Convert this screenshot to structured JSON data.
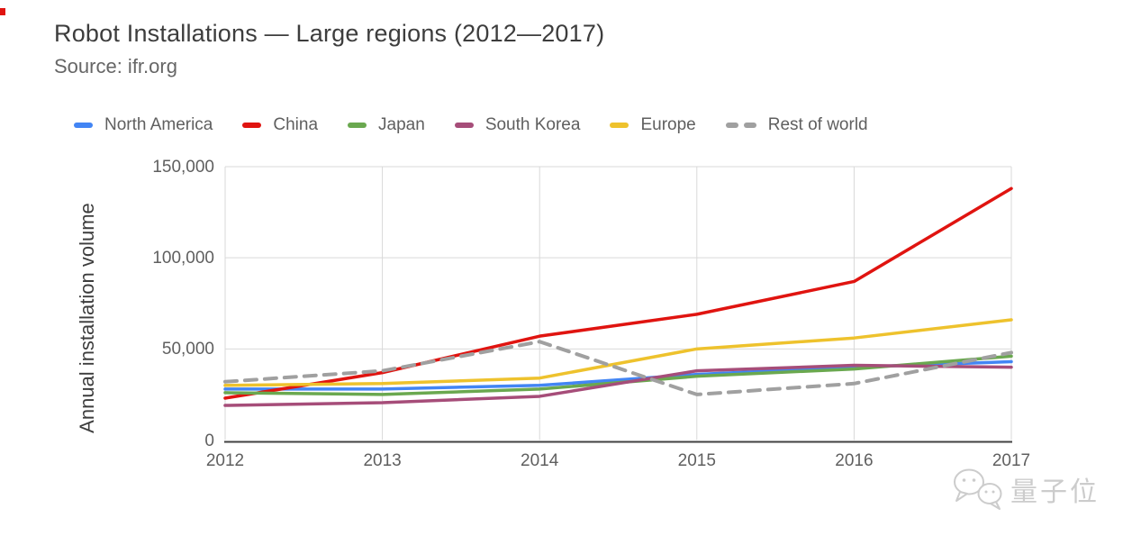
{
  "page": {
    "title": "Robot Installations — Large regions (2012—2017)",
    "source": "Source: ifr.org",
    "watermark": "量子位"
  },
  "chart_data": {
    "type": "line",
    "title": "Robot Installations — Large regions (2012—2017)",
    "source": "Source: ifr.org",
    "xlabel": "",
    "ylabel": "Annual installation volume",
    "x_tick_labels": [
      "2012",
      "2013",
      "2014",
      "2015",
      "2016",
      "2017"
    ],
    "y_ticks": [
      {
        "label": "0",
        "value": 0
      },
      {
        "label": "50,000",
        "value": 50000
      },
      {
        "label": "100,000",
        "value": 100000
      },
      {
        "label": "150,000",
        "value": 150000
      }
    ],
    "ylim": [
      0,
      150000
    ],
    "grid": true,
    "legend_position": "top",
    "series": [
      {
        "name": "North America",
        "color": "#4285f4",
        "dashed": false,
        "values": [
          28000,
          28000,
          30000,
          36000,
          40000,
          43000
        ]
      },
      {
        "name": "China",
        "color": "#e01410",
        "dashed": false,
        "values": [
          23000,
          37000,
          57000,
          69000,
          87000,
          138000
        ]
      },
      {
        "name": "Japan",
        "color": "#6aa84f",
        "dashed": false,
        "values": [
          26000,
          25000,
          28000,
          35000,
          39000,
          46000
        ]
      },
      {
        "name": "South Korea",
        "color": "#a64d79",
        "dashed": false,
        "values": [
          19000,
          20500,
          24000,
          38000,
          41000,
          40000
        ]
      },
      {
        "name": "Europe",
        "color": "#eec22d",
        "dashed": false,
        "values": [
          30000,
          31000,
          34000,
          50000,
          56000,
          66000
        ]
      },
      {
        "name": "Rest of world",
        "color": "#a0a0a0",
        "dashed": true,
        "values": [
          32000,
          38000,
          54000,
          25000,
          31000,
          48000
        ]
      }
    ],
    "colors": {
      "gridline": "#d9d9d9",
      "axis": "#424242"
    }
  }
}
